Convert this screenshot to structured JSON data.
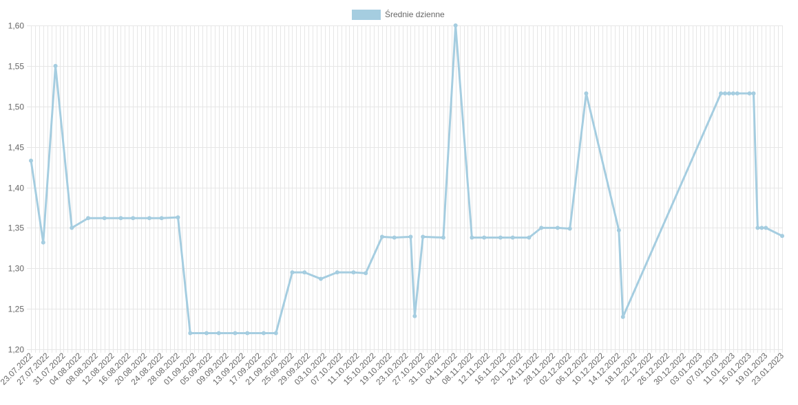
{
  "chart_data": {
    "type": "line",
    "legend": {
      "label": "Średnie dzienne",
      "position": "top-center"
    },
    "colors": {
      "series": "#a5cde0",
      "grid": "#e6e6e6",
      "text": "#666666"
    },
    "grid": true,
    "y_axis": {
      "min": 1.2,
      "max": 1.6,
      "ticks": [
        1.2,
        1.25,
        1.3,
        1.35,
        1.4,
        1.45,
        1.5,
        1.55,
        1.6
      ],
      "tick_labels": [
        "1,20",
        "1,25",
        "1,30",
        "1,35",
        "1,40",
        "1,45",
        "1,50",
        "1,55",
        "1,60"
      ]
    },
    "x_axis": {
      "min": "2022-07-23",
      "max": "2023-01-23",
      "tick_labels": [
        "23.07.2022",
        "27.07.2022",
        "31.07.2022",
        "04.08.2022",
        "08.08.2022",
        "12.08.2022",
        "16.08.2022",
        "20.08.2022",
        "24.08.2022",
        "28.08.2022",
        "01.09.2022",
        "05.09.2022",
        "09.09.2022",
        "13.09.2022",
        "17.09.2022",
        "21.09.2022",
        "25.09.2022",
        "29.09.2022",
        "03.10.2022",
        "07.10.2022",
        "11.10.2022",
        "15.10.2022",
        "19.10.2022",
        "23.10.2022",
        "27.10.2022",
        "31.10.2022",
        "04.11.2022",
        "08.11.2022",
        "12.11.2022",
        "16.11.2022",
        "20.11.2022",
        "24.11.2022",
        "28.11.2022",
        "02.12.2022",
        "06.12.2022",
        "10.12.2022",
        "14.12.2022",
        "18.12.2022",
        "22.12.2022",
        "26.12.2022",
        "30.12.2022",
        "03.01.2023",
        "07.01.2023",
        "11.01.2023",
        "15.01.2023",
        "19.01.2023",
        "23.01.2023"
      ]
    },
    "series": [
      {
        "name": "Średnie dzienne",
        "points": [
          {
            "x": "2022-07-23",
            "y": 1.433
          },
          {
            "x": "2022-07-26",
            "y": 1.332
          },
          {
            "x": "2022-07-29",
            "y": 1.55
          },
          {
            "x": "2022-08-02",
            "y": 1.35
          },
          {
            "x": "2022-08-06",
            "y": 1.362
          },
          {
            "x": "2022-08-10",
            "y": 1.362
          },
          {
            "x": "2022-08-14",
            "y": 1.362
          },
          {
            "x": "2022-08-17",
            "y": 1.362
          },
          {
            "x": "2022-08-21",
            "y": 1.362
          },
          {
            "x": "2022-08-24",
            "y": 1.362
          },
          {
            "x": "2022-08-28",
            "y": 1.363
          },
          {
            "x": "2022-08-31",
            "y": 1.22
          },
          {
            "x": "2022-09-04",
            "y": 1.22
          },
          {
            "x": "2022-09-07",
            "y": 1.22
          },
          {
            "x": "2022-09-11",
            "y": 1.22
          },
          {
            "x": "2022-09-14",
            "y": 1.22
          },
          {
            "x": "2022-09-18",
            "y": 1.22
          },
          {
            "x": "2022-09-21",
            "y": 1.22
          },
          {
            "x": "2022-09-25",
            "y": 1.295
          },
          {
            "x": "2022-09-28",
            "y": 1.295
          },
          {
            "x": "2022-10-02",
            "y": 1.287
          },
          {
            "x": "2022-10-06",
            "y": 1.295
          },
          {
            "x": "2022-10-10",
            "y": 1.295
          },
          {
            "x": "2022-10-13",
            "y": 1.294
          },
          {
            "x": "2022-10-17",
            "y": 1.339
          },
          {
            "x": "2022-10-20",
            "y": 1.338
          },
          {
            "x": "2022-10-24",
            "y": 1.339
          },
          {
            "x": "2022-10-25",
            "y": 1.241
          },
          {
            "x": "2022-10-27",
            "y": 1.339
          },
          {
            "x": "2022-11-01",
            "y": 1.338
          },
          {
            "x": "2022-11-04",
            "y": 1.6
          },
          {
            "x": "2022-11-08",
            "y": 1.338
          },
          {
            "x": "2022-11-11",
            "y": 1.338
          },
          {
            "x": "2022-11-15",
            "y": 1.338
          },
          {
            "x": "2022-11-18",
            "y": 1.338
          },
          {
            "x": "2022-11-22",
            "y": 1.338
          },
          {
            "x": "2022-11-25",
            "y": 1.35
          },
          {
            "x": "2022-11-29",
            "y": 1.35
          },
          {
            "x": "2022-12-02",
            "y": 1.349
          },
          {
            "x": "2022-12-06",
            "y": 1.516
          },
          {
            "x": "2022-12-14",
            "y": 1.347
          },
          {
            "x": "2022-12-15",
            "y": 1.24
          },
          {
            "x": "2023-01-08",
            "y": 1.516
          },
          {
            "x": "2023-01-09",
            "y": 1.516
          },
          {
            "x": "2023-01-10",
            "y": 1.516
          },
          {
            "x": "2023-01-11",
            "y": 1.516
          },
          {
            "x": "2023-01-12",
            "y": 1.516
          },
          {
            "x": "2023-01-15",
            "y": 1.516
          },
          {
            "x": "2023-01-16",
            "y": 1.516
          },
          {
            "x": "2023-01-17",
            "y": 1.35
          },
          {
            "x": "2023-01-18",
            "y": 1.35
          },
          {
            "x": "2023-01-19",
            "y": 1.35
          },
          {
            "x": "2023-01-23",
            "y": 1.34
          }
        ]
      }
    ]
  }
}
